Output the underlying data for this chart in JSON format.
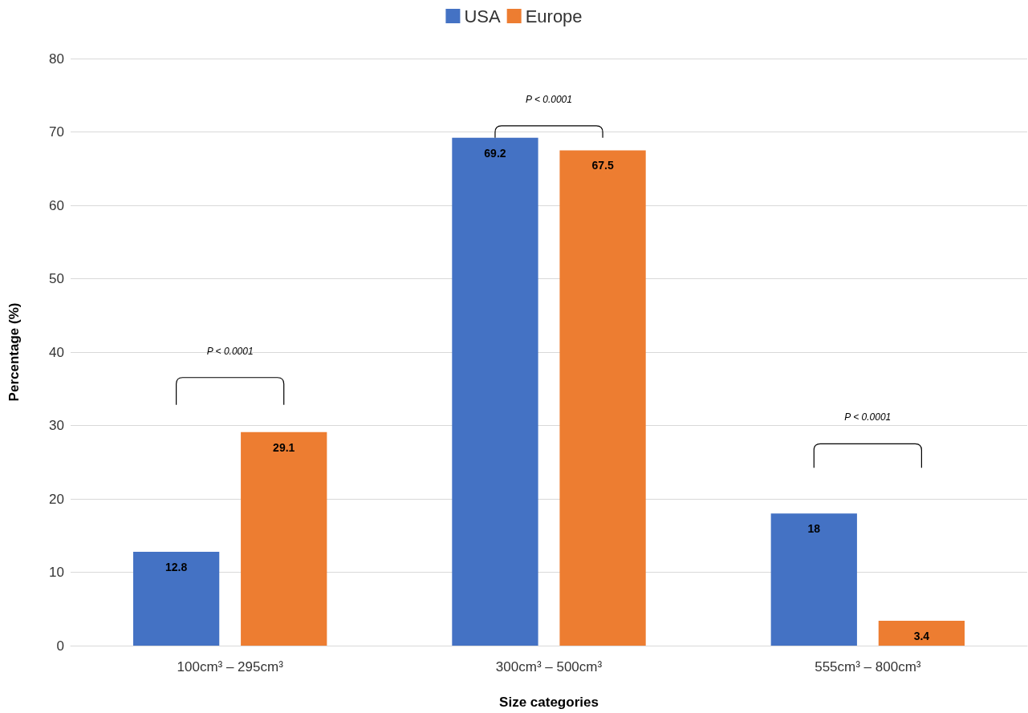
{
  "chart_data": {
    "type": "bar",
    "xlabel": "Size categories",
    "ylabel": "Percentage (%)",
    "categories": [
      "100cm³ – 295cm³",
      "300cm³ – 500cm³",
      "555cm³ – 800cm³"
    ],
    "series": [
      {
        "name": "USA",
        "color": "#4472c4",
        "values": [
          12.8,
          69.2,
          18
        ]
      },
      {
        "name": "Europe",
        "color": "#ed7d31",
        "values": [
          29.1,
          67.5,
          3.4
        ]
      }
    ],
    "ylim": [
      0,
      80
    ],
    "yticks": [
      0,
      10,
      20,
      30,
      40,
      50,
      60,
      70,
      80
    ],
    "grid": "y",
    "legend": "top",
    "data_labels": true,
    "annotations": [
      "P < 0.0001",
      "P < 0.0001",
      "P < 0.0001"
    ]
  }
}
